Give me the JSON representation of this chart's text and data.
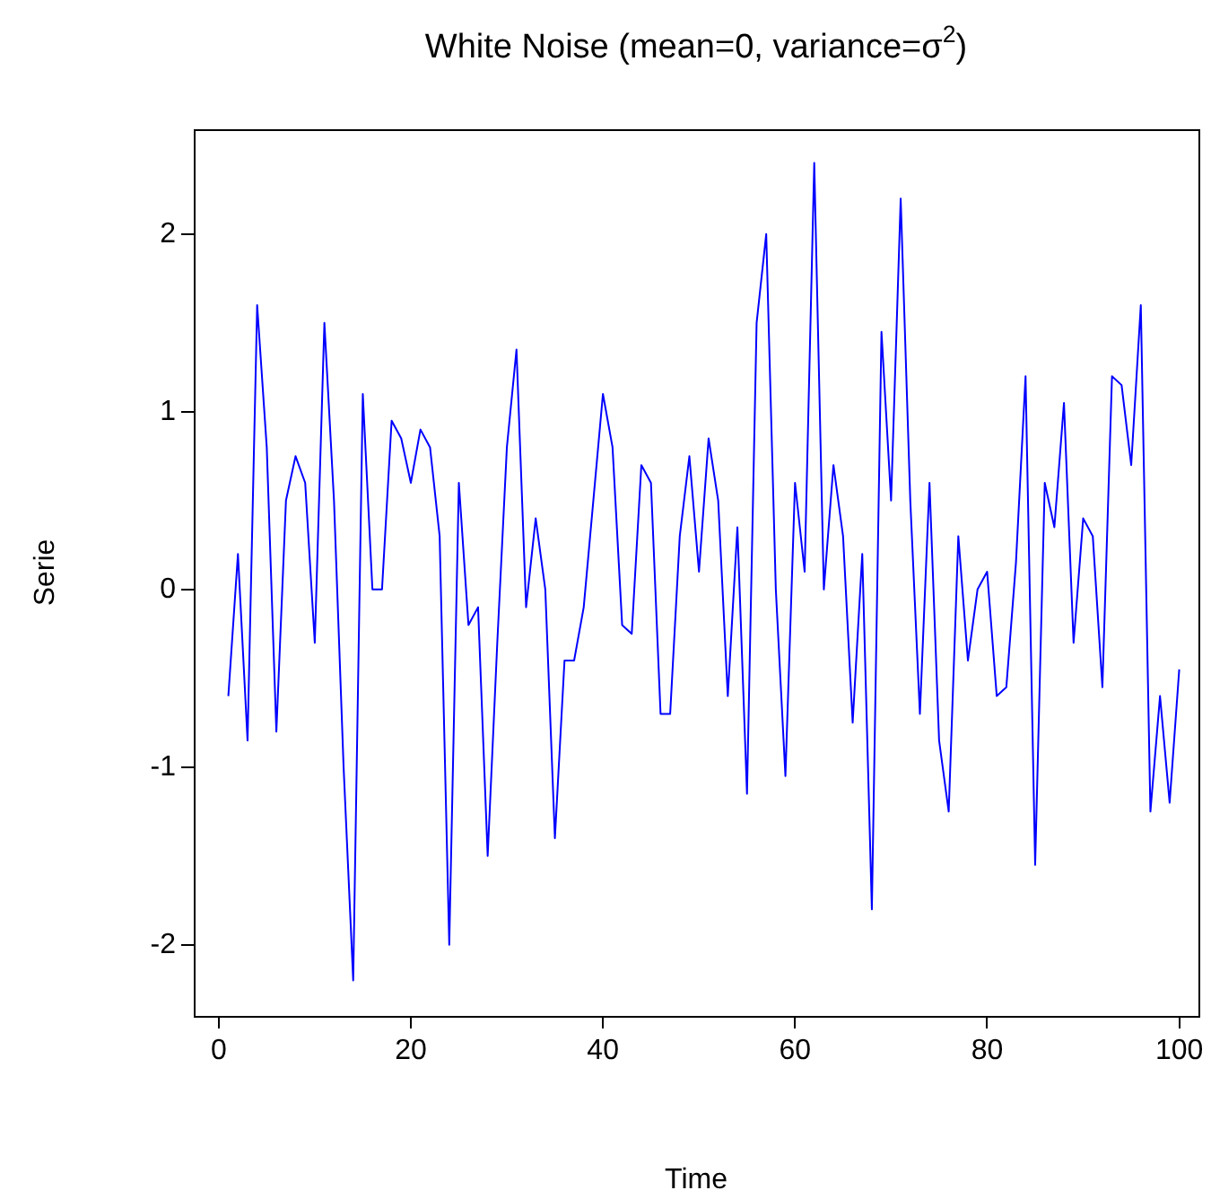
{
  "chart_data": {
    "type": "line",
    "title": "White Noise (mean=0, variance=σ$^{2}$)",
    "xlabel": "Time",
    "ylabel": "Serie",
    "x": [
      1,
      2,
      3,
      4,
      5,
      6,
      7,
      8,
      9,
      10,
      11,
      12,
      13,
      14,
      15,
      16,
      17,
      18,
      19,
      20,
      21,
      22,
      23,
      24,
      25,
      26,
      27,
      28,
      29,
      30,
      31,
      32,
      33,
      34,
      35,
      36,
      37,
      38,
      39,
      40,
      41,
      42,
      43,
      44,
      45,
      46,
      47,
      48,
      49,
      50,
      51,
      52,
      53,
      54,
      55,
      56,
      57,
      58,
      59,
      60,
      61,
      62,
      63,
      64,
      65,
      66,
      67,
      68,
      69,
      70,
      71,
      72,
      73,
      74,
      75,
      76,
      77,
      78,
      79,
      80,
      81,
      82,
      83,
      84,
      85,
      86,
      87,
      88,
      89,
      90,
      91,
      92,
      93,
      94,
      95,
      96,
      97,
      98,
      99,
      100
    ],
    "series": [
      {
        "color": "#0000ff",
        "values": [
          -0.6,
          0.2,
          -0.85,
          1.6,
          0.8,
          -0.8,
          0.5,
          0.75,
          0.6,
          -0.3,
          1.5,
          0.5,
          -1.0,
          -2.2,
          1.1,
          0.0,
          0.0,
          0.95,
          0.85,
          0.6,
          0.9,
          0.8,
          0.3,
          -2.0,
          0.6,
          -0.2,
          -0.1,
          -1.5,
          -0.3,
          0.8,
          1.35,
          -0.1,
          0.4,
          0.0,
          -1.4,
          -0.4,
          -0.4,
          -0.1,
          0.5,
          1.1,
          0.8,
          -0.2,
          -0.25,
          0.7,
          0.6,
          -0.7,
          -0.7,
          0.3,
          0.75,
          0.1,
          0.85,
          0.5,
          -0.6,
          0.35,
          -1.15,
          1.5,
          2.0,
          0.0,
          -1.05,
          0.6,
          0.1,
          2.4,
          0.0,
          0.7,
          0.3,
          -0.75,
          0.2,
          -1.8,
          1.45,
          0.5,
          2.2,
          0.5,
          -0.7,
          0.6,
          -0.85,
          -1.25,
          0.3,
          -0.4,
          0.0,
          0.1,
          -0.6,
          -0.55,
          0.15,
          1.2,
          -1.55,
          0.6,
          0.35,
          1.05,
          -0.3,
          0.4,
          0.3,
          -0.55,
          1.2,
          1.15,
          0.7,
          1.6,
          -1.25,
          -0.6,
          -1.2,
          -0.45
        ]
      }
    ],
    "xlim": [
      -2.6,
      102
    ],
    "ylim": [
      -2.4,
      2.59
    ],
    "xticks": [
      0,
      20,
      40,
      60,
      80,
      100
    ],
    "yticks": [
      -2,
      -1,
      0,
      1,
      2
    ],
    "grid": false,
    "legend": false,
    "marker": "none",
    "line_style": "solid"
  }
}
